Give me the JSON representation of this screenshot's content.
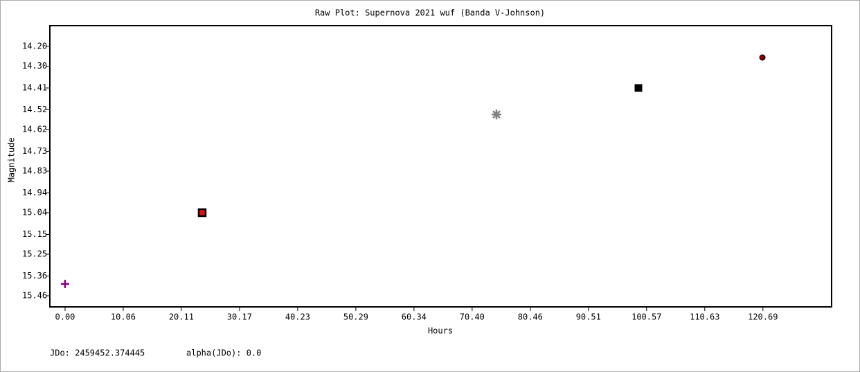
{
  "chart_data": {
    "type": "scatter",
    "title": "Raw Plot: Supernova 2021 wuf  (Banda V-Johnson)",
    "xlabel": "Hours",
    "ylabel": "Magnitude",
    "annotations": [
      "JDo: 2459452.374445",
      "alpha(JDo): 0.0"
    ],
    "x": [
      0.0,
      23.71,
      74.61,
      99.16,
      120.6
    ],
    "values": [
      15.4,
      15.04,
      14.544,
      14.41,
      14.256
    ],
    "colors": [
      "#800080",
      "#e01010",
      "#808080",
      "#000000",
      "#800000"
    ],
    "markers": [
      "plus",
      "square-outlined",
      "asterisk",
      "square",
      "circle"
    ],
    "xlim": [
      -2.63,
      132.57
    ],
    "ylim": [
      15.516,
      14.095
    ],
    "xticks": [
      {
        "value": 0,
        "label": "0.00"
      },
      10.06,
      20.11,
      30.17,
      40.23,
      50.29,
      60.34,
      {
        "value": 70.4,
        "label": "70.40"
      },
      80.46,
      90.51,
      100.57,
      110.63,
      120.69
    ],
    "yticks": [
      {
        "value": 14.2,
        "label": "14.20"
      },
      {
        "value": 14.3,
        "label": "14.30"
      },
      14.41,
      14.52,
      14.62,
      14.73,
      14.83,
      14.94,
      15.04,
      15.15,
      15.25,
      15.36,
      15.46
    ]
  }
}
